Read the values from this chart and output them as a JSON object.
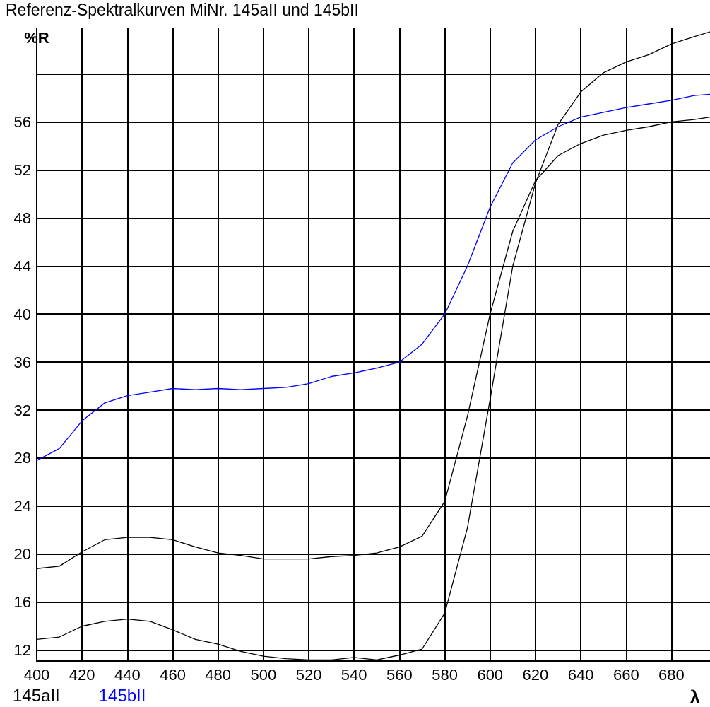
{
  "chart_data": {
    "type": "line",
    "title": "Referenz-Spektralkurven MiNr. 145aII und 145bII",
    "xlabel": "λ",
    "ylabel": "%R",
    "x": [
      400,
      410,
      420,
      430,
      440,
      450,
      460,
      470,
      480,
      490,
      500,
      510,
      520,
      530,
      540,
      550,
      560,
      570,
      580,
      590,
      600,
      610,
      620,
      630,
      640,
      650,
      660,
      670,
      680,
      690,
      697
    ],
    "series": [
      {
        "name": "145aII",
        "color": "#000000",
        "values": [
          18.8,
          19.0,
          20.2,
          21.2,
          21.4,
          21.4,
          21.2,
          20.6,
          20.1,
          19.9,
          19.6,
          19.6,
          19.6,
          19.8,
          19.9,
          20.1,
          20.6,
          21.5,
          24.4,
          31.5,
          40.0,
          46.9,
          51.1,
          53.2,
          54.2,
          54.9,
          55.3,
          55.6,
          56.0,
          56.2,
          56.4
        ]
      },
      {
        "color": "#000000",
        "values": [
          12.9,
          13.1,
          14.0,
          14.4,
          14.6,
          14.4,
          13.7,
          12.9,
          12.5,
          11.9,
          11.5,
          11.3,
          11.2,
          11.2,
          11.4,
          11.2,
          11.6,
          12.1,
          15.1,
          22.2,
          32.9,
          44.0,
          50.9,
          55.8,
          58.5,
          60.1,
          61.0,
          61.6,
          62.5,
          63.1,
          63.5
        ]
      },
      {
        "name": "145bII",
        "color": "#0000ff",
        "values": [
          27.8,
          28.8,
          31.1,
          32.6,
          33.2,
          33.5,
          33.8,
          33.7,
          33.8,
          33.7,
          33.8,
          33.9,
          34.2,
          34.8,
          35.1,
          35.5,
          36.0,
          37.5,
          40.0,
          44.0,
          48.9,
          52.6,
          54.5,
          55.6,
          56.4,
          56.8,
          57.2,
          57.5,
          57.8,
          58.2,
          58.3
        ]
      }
    ],
    "xlim": [
      400,
      697
    ],
    "xticks": [
      400,
      420,
      440,
      460,
      480,
      500,
      520,
      540,
      560,
      580,
      600,
      620,
      640,
      660,
      680
    ],
    "ylim": [
      11.1,
      63.8
    ],
    "yticks": [
      12,
      16,
      20,
      24,
      28,
      32,
      36,
      40,
      44,
      48,
      52,
      56,
      {
        "value": 60,
        "label": null
      }
    ],
    "grid": true,
    "legend": "bottom left",
    "marker": "none",
    "line_style": "solid"
  }
}
